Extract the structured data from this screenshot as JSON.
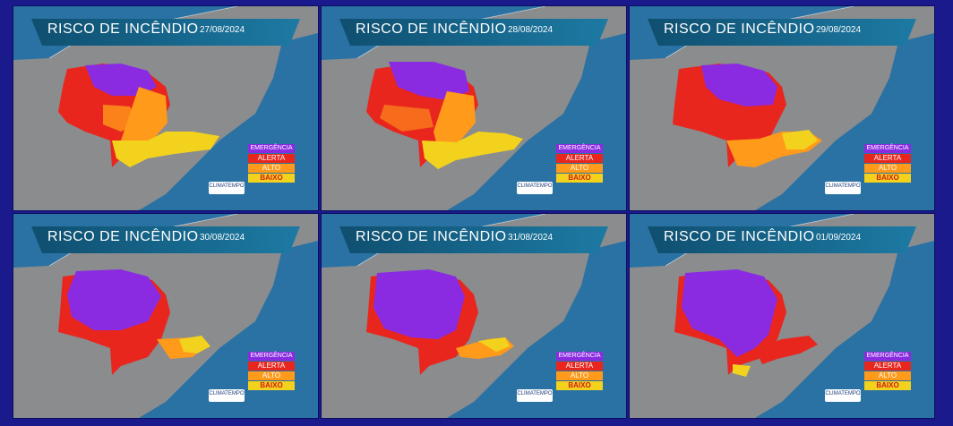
{
  "banner_title": "RISCO DE INCÊNDIO",
  "legend": {
    "emergencia": "EMERGÊNCIA",
    "alerta": "ALERTA",
    "alto": "ALTO",
    "baixo": "BAIXO"
  },
  "logo_text": "CLIMATEMPO",
  "colors": {
    "emergencia": "#8a2be2",
    "alerta": "#e8261e",
    "alto": "#ff9a1a",
    "baixo": "#f3d21e",
    "ocean": "#2a72a3",
    "land": "#8a8c8e"
  },
  "panels": [
    {
      "date": "27/08/2024",
      "dominant": "alerta"
    },
    {
      "date": "28/08/2024",
      "dominant": "alerta"
    },
    {
      "date": "29/08/2024",
      "dominant": "alerta"
    },
    {
      "date": "30/08/2024",
      "dominant": "emergencia"
    },
    {
      "date": "31/08/2024",
      "dominant": "emergencia"
    },
    {
      "date": "01/09/2024",
      "dominant": "emergencia"
    }
  ]
}
